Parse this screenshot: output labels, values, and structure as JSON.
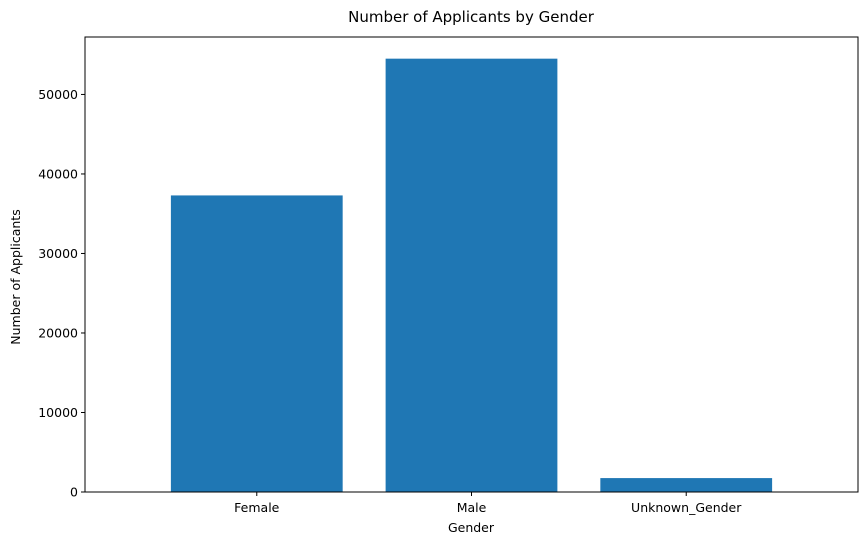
{
  "chart_data": {
    "type": "bar",
    "title": "Number of Applicants by Gender",
    "xlabel": "Gender",
    "ylabel": "Number of Applicants",
    "categories": [
      "Female",
      "Male",
      "Unknown_Gender"
    ],
    "values": [
      37300,
      54500,
      1750
    ],
    "ylim": [
      0,
      57225
    ],
    "yticks": [
      0,
      10000,
      20000,
      30000,
      40000,
      50000
    ],
    "bar_color": "#1f77b4",
    "grid": false,
    "legend": "none"
  }
}
